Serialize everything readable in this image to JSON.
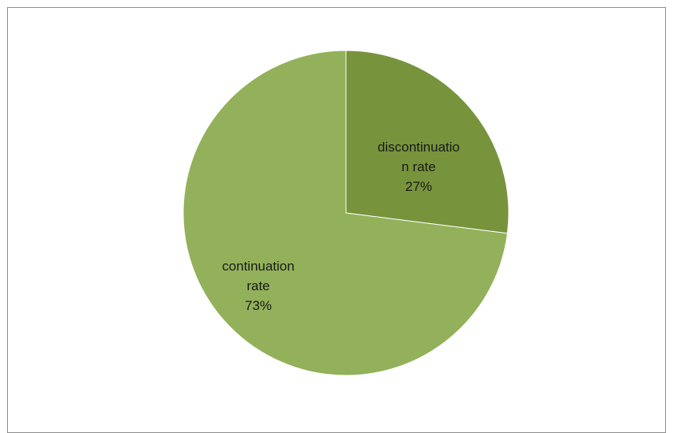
{
  "chart_data": {
    "type": "pie",
    "title": "",
    "start_angle_deg": 0,
    "slices": [
      {
        "name": "discontinuation rate",
        "label_lines": [
          "discontinuatio",
          "n rate"
        ],
        "value": 27,
        "value_label": "27%",
        "color": "#77933c"
      },
      {
        "name": "continuation rate",
        "label_lines": [
          "continuation",
          "rate"
        ],
        "value": 73,
        "value_label": "73%",
        "color": "#92b15a"
      }
    ],
    "legend": "none"
  }
}
